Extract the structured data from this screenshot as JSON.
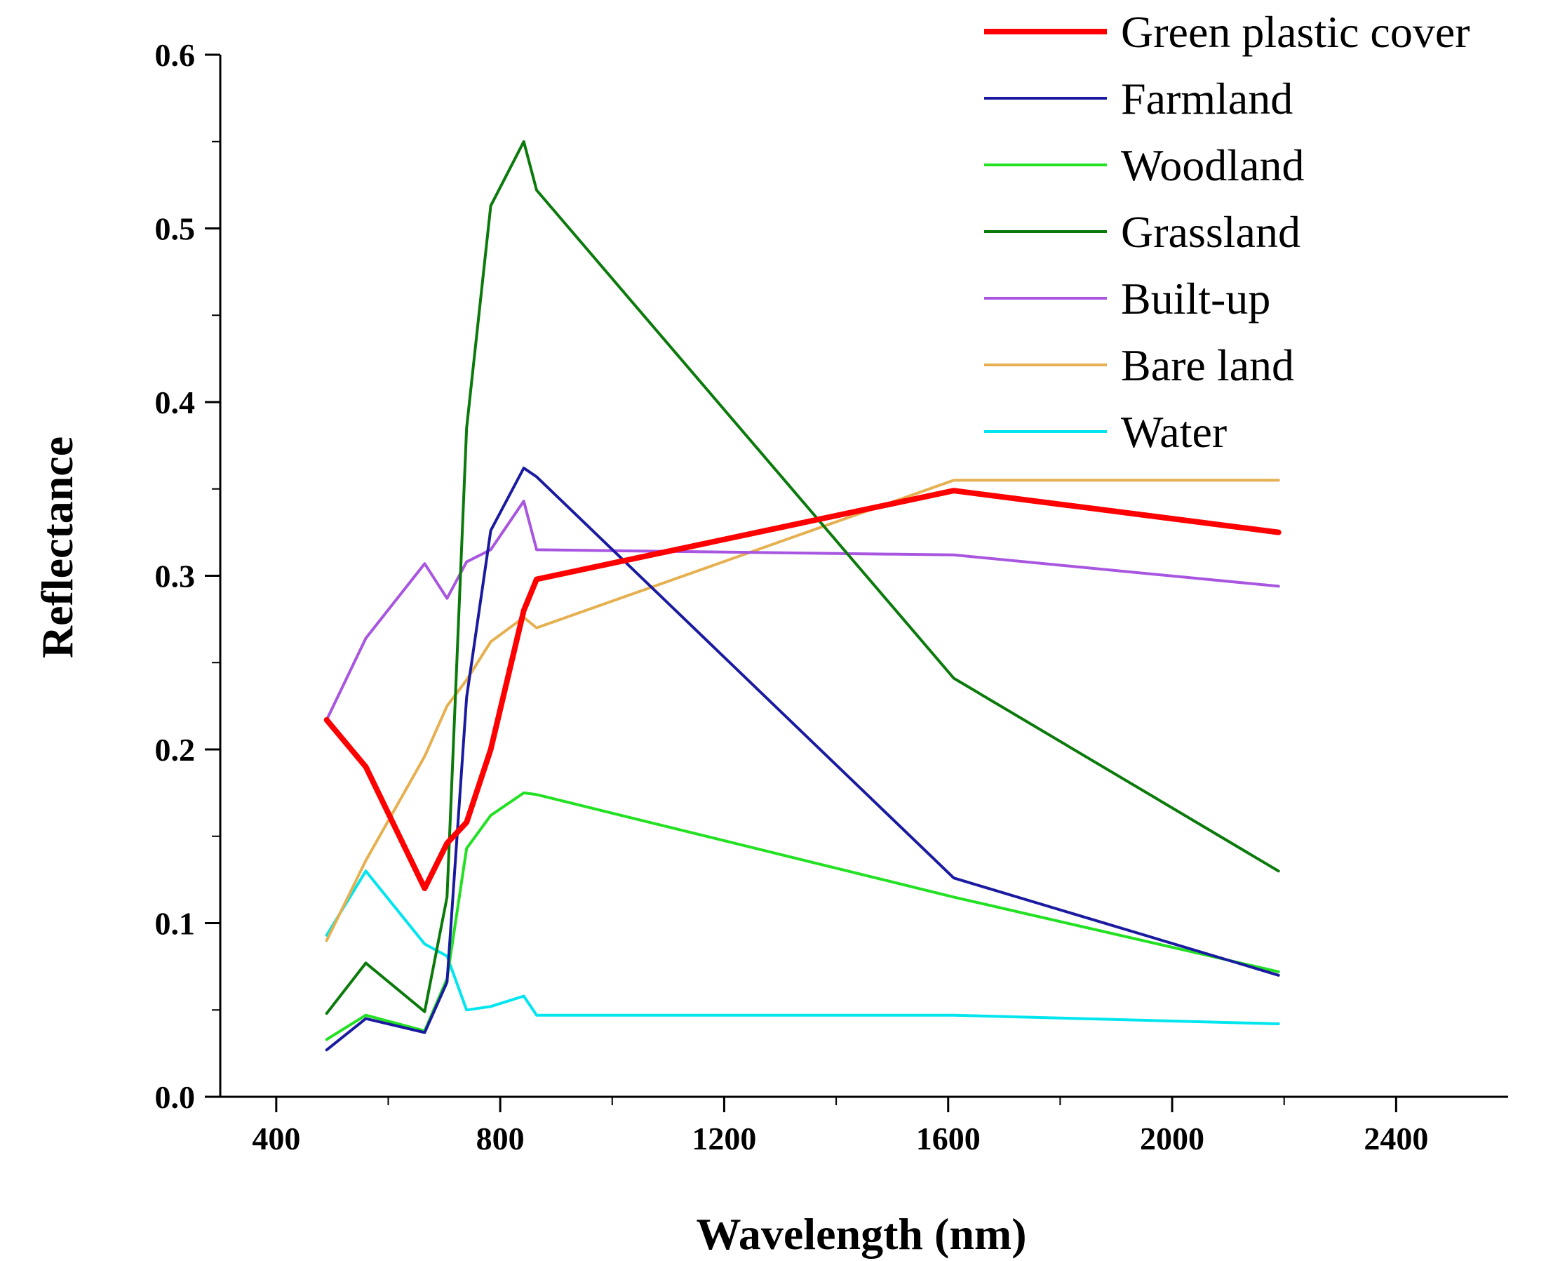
{
  "chart_data": {
    "type": "line",
    "title": "",
    "xlabel": "Wavelength (nm)",
    "ylabel": "Reflectance",
    "xlim": [
      300,
      2600
    ],
    "ylim": [
      0.0,
      0.6
    ],
    "xticks": [
      400,
      800,
      1200,
      1600,
      2000,
      2400
    ],
    "yticks": [
      0.0,
      0.1,
      0.2,
      0.3,
      0.4,
      0.5,
      0.6
    ],
    "xtick_labels": [
      "400",
      "800",
      "1200",
      "1600",
      "2000",
      "2400"
    ],
    "ytick_labels": [
      "0.0",
      "0.1",
      "0.2",
      "0.3",
      "0.4",
      "0.5",
      "0.6"
    ],
    "grid": false,
    "legend_position": "top-right",
    "series": [
      {
        "name": "Green plastic cover",
        "color": "#ff0000",
        "points": [
          [
            490,
            0.217
          ],
          [
            560,
            0.19
          ],
          [
            665,
            0.12
          ],
          [
            705,
            0.146
          ],
          [
            740,
            0.158
          ],
          [
            783,
            0.2
          ],
          [
            842,
            0.28
          ],
          [
            865,
            0.298
          ],
          [
            1610,
            0.349
          ],
          [
            2190,
            0.325
          ]
        ]
      },
      {
        "name": "Farmland",
        "color": "#1a1aa0",
        "points": [
          [
            490,
            0.027
          ],
          [
            560,
            0.045
          ],
          [
            665,
            0.037
          ],
          [
            705,
            0.066
          ],
          [
            740,
            0.23
          ],
          [
            783,
            0.326
          ],
          [
            842,
            0.362
          ],
          [
            865,
            0.357
          ],
          [
            1610,
            0.126
          ],
          [
            2190,
            0.07
          ]
        ]
      },
      {
        "name": "Woodland",
        "color": "#22e022",
        "points": [
          [
            490,
            0.033
          ],
          [
            560,
            0.047
          ],
          [
            665,
            0.038
          ],
          [
            705,
            0.068
          ],
          [
            740,
            0.143
          ],
          [
            783,
            0.162
          ],
          [
            842,
            0.175
          ],
          [
            865,
            0.174
          ],
          [
            1610,
            0.115
          ],
          [
            2190,
            0.072
          ]
        ]
      },
      {
        "name": "Grassland",
        "color": "#0a7a0a",
        "points": [
          [
            490,
            0.048
          ],
          [
            560,
            0.077
          ],
          [
            665,
            0.049
          ],
          [
            705,
            0.115
          ],
          [
            740,
            0.385
          ],
          [
            783,
            0.513
          ],
          [
            842,
            0.55
          ],
          [
            865,
            0.522
          ],
          [
            1610,
            0.241
          ],
          [
            2190,
            0.13
          ]
        ]
      },
      {
        "name": "Built-up",
        "color": "#a855e0",
        "points": [
          [
            490,
            0.217
          ],
          [
            560,
            0.264
          ],
          [
            665,
            0.307
          ],
          [
            705,
            0.287
          ],
          [
            740,
            0.308
          ],
          [
            783,
            0.315
          ],
          [
            842,
            0.343
          ],
          [
            865,
            0.315
          ],
          [
            1610,
            0.312
          ],
          [
            2190,
            0.294
          ]
        ]
      },
      {
        "name": "Bare land",
        "color": "#e6b050",
        "points": [
          [
            490,
            0.09
          ],
          [
            560,
            0.136
          ],
          [
            665,
            0.196
          ],
          [
            705,
            0.225
          ],
          [
            740,
            0.24
          ],
          [
            783,
            0.262
          ],
          [
            842,
            0.276
          ],
          [
            865,
            0.27
          ],
          [
            1610,
            0.355
          ],
          [
            2190,
            0.355
          ]
        ]
      },
      {
        "name": "Water",
        "color": "#00e5ee",
        "points": [
          [
            490,
            0.093
          ],
          [
            560,
            0.13
          ],
          [
            665,
            0.088
          ],
          [
            705,
            0.081
          ],
          [
            740,
            0.05
          ],
          [
            783,
            0.052
          ],
          [
            842,
            0.058
          ],
          [
            865,
            0.047
          ],
          [
            1610,
            0.047
          ],
          [
            2190,
            0.042
          ]
        ]
      }
    ]
  }
}
